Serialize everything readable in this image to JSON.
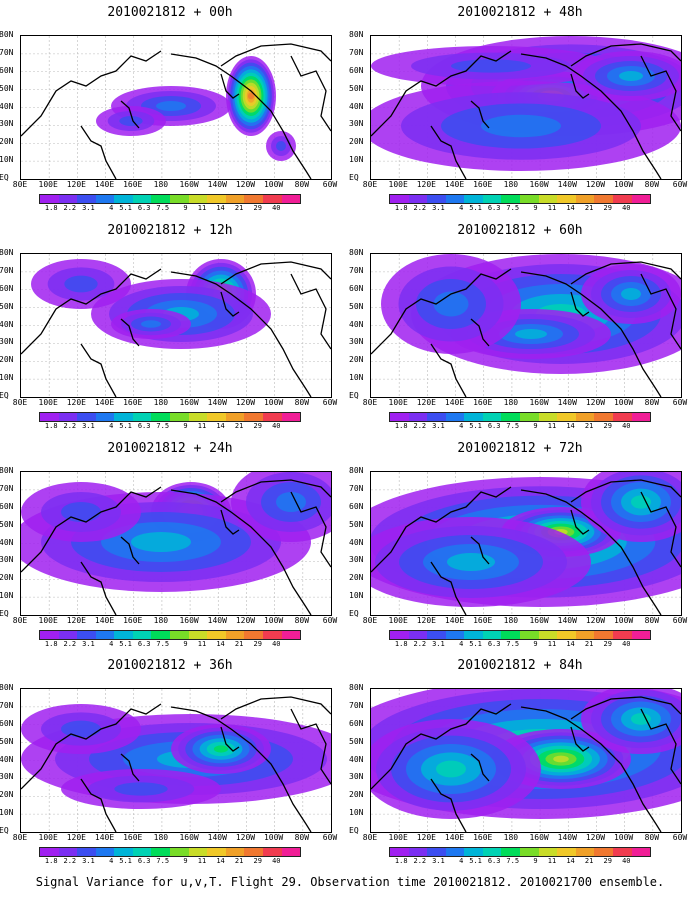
{
  "panels": [
    {
      "title": "2010021812 + 00h"
    },
    {
      "title": "2010021812 + 48h"
    },
    {
      "title": "2010021812 + 12h"
    },
    {
      "title": "2010021812 + 60h"
    },
    {
      "title": "2010021812 + 24h"
    },
    {
      "title": "2010021812 + 72h"
    },
    {
      "title": "2010021812 + 36h"
    },
    {
      "title": "2010021812 + 84h"
    }
  ],
  "lat_labels": [
    "80N",
    "70N",
    "60N",
    "50N",
    "40N",
    "30N",
    "20N",
    "10N",
    "EQ"
  ],
  "lon_labels": [
    "80E",
    "100E",
    "120E",
    "140E",
    "160E",
    "180",
    "160W",
    "140W",
    "120W",
    "100W",
    "80W",
    "60W"
  ],
  "colorbar": {
    "labels": [
      "1.8",
      "2.2",
      "3.1",
      "4",
      "5.1",
      "6.3",
      "7.5",
      "9",
      "11",
      "14",
      "21",
      "29",
      "40"
    ],
    "colors": [
      "#a020f0",
      "#7b2ff2",
      "#3c4ef0",
      "#1e78f0",
      "#00b4d8",
      "#00d2b4",
      "#00dc5a",
      "#78dc28",
      "#c8dc28",
      "#f0c828",
      "#f0a028",
      "#f07830",
      "#f03c50",
      "#f01e96"
    ]
  },
  "caption": "Signal Variance for u,v,T. Flight 29. Observation time 2010021812. 2010021700 ensemble."
}
